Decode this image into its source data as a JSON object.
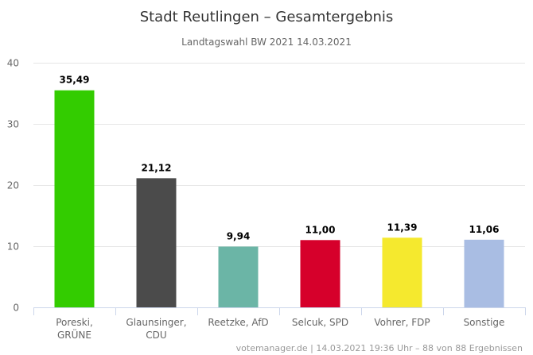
{
  "chart_data": {
    "type": "bar",
    "title": "Stadt Reutlingen – Gesamtergebnis",
    "subtitle": "Landtagswahl BW 2021 14.03.2021",
    "xlabel": "",
    "ylabel": "",
    "ylim": [
      0,
      40
    ],
    "yticks": [
      "0",
      "10",
      "20",
      "30",
      "40"
    ],
    "grid": true,
    "categories": [
      [
        "Poreski,",
        "GRÜNE"
      ],
      [
        "Glaunsinger,",
        "CDU"
      ],
      [
        "Reetzke, AfD"
      ],
      [
        "Selcuk, SPD"
      ],
      [
        "Vohrer, FDP"
      ],
      [
        "Sonstige"
      ]
    ],
    "values": [
      35.49,
      21.12,
      9.94,
      11.0,
      11.39,
      11.06
    ],
    "value_labels": [
      "35,49",
      "21,12",
      "9,94",
      "11,00",
      "11,39",
      "11,06"
    ],
    "colors": [
      "#33cc00",
      "#4b4b4b",
      "#6bb5a6",
      "#d6002b",
      "#f5e92e",
      "#a9bde3"
    ],
    "credit": "votemanager.de | 14.03.2021 19:36 Uhr – 88 von 88 Ergebnissen"
  }
}
